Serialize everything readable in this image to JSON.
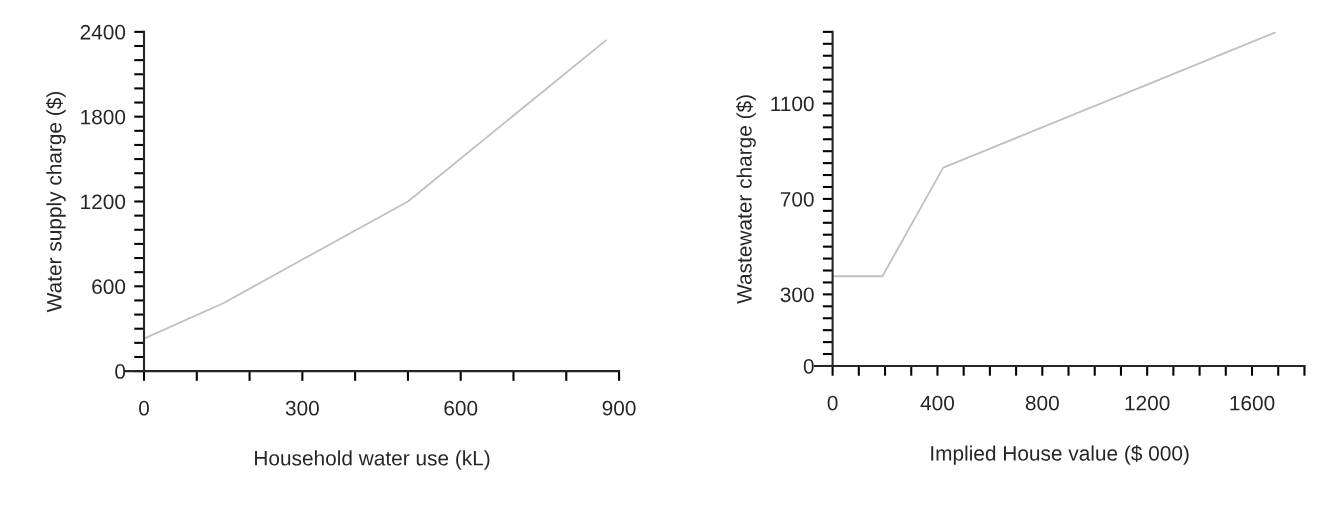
{
  "chart_data": [
    {
      "type": "line",
      "xlabel": "Household water use (kL)",
      "ylabel": "Water supply charge ($)",
      "x": [
        0,
        150,
        300,
        500,
        875
      ],
      "series": [
        {
          "color": "#c0c0c0",
          "values": [
            230,
            480,
            789,
            1200,
            2340
          ]
        }
      ],
      "xlim": [
        -36,
        900
      ],
      "ylim": [
        0,
        2400
      ],
      "grid": false,
      "legend": false,
      "marker": "none",
      "line_style": "solid",
      "xticks": [
        0,
        {
          "value": 100,
          "label": null
        },
        {
          "value": 200,
          "label": null
        },
        300,
        {
          "value": 400,
          "label": null
        },
        {
          "value": 500,
          "label": null
        },
        600,
        {
          "value": 700,
          "label": null
        },
        {
          "value": 800,
          "label": null
        },
        900
      ],
      "yticks": [
        0,
        {
          "value": 100,
          "label": null
        },
        {
          "value": 200,
          "label": null
        },
        {
          "value": 300,
          "label": null
        },
        {
          "value": 400,
          "label": null
        },
        {
          "value": 500,
          "label": null
        },
        600,
        {
          "value": 700,
          "label": null
        },
        {
          "value": 800,
          "label": null
        },
        {
          "value": 900,
          "label": null
        },
        {
          "value": 1000,
          "label": null
        },
        {
          "value": 1100,
          "label": null
        },
        1200,
        {
          "value": 1300,
          "label": null
        },
        {
          "value": 1400,
          "label": null
        },
        {
          "value": 1500,
          "label": null
        },
        {
          "value": 1600,
          "label": null
        },
        {
          "value": 1700,
          "label": null
        },
        1800,
        {
          "value": 1900,
          "label": null
        },
        {
          "value": 2000,
          "label": null
        },
        {
          "value": 2100,
          "label": null
        },
        {
          "value": 2200,
          "label": null
        },
        {
          "value": 2300,
          "label": null
        },
        2400
      ]
    },
    {
      "type": "line",
      "xlabel": "Implied House value ($ 000)",
      "ylabel": "Wastewater charge ($)",
      "x": [
        0,
        190,
        422,
        1200,
        1687
      ],
      "series": [
        {
          "color": "#c0c0c0",
          "values": [
            376,
            376,
            831,
            1179,
            1397
          ]
        }
      ],
      "xlim": [
        -68,
        1800
      ],
      "ylim": [
        0,
        1400
      ],
      "grid": false,
      "legend": false,
      "marker": "none",
      "line_style": "solid",
      "xticks": [
        0,
        {
          "value": 100,
          "label": null
        },
        {
          "value": 200,
          "label": null
        },
        {
          "value": 300,
          "label": null
        },
        400,
        {
          "value": 500,
          "label": null
        },
        {
          "value": 600,
          "label": null
        },
        {
          "value": 700,
          "label": null
        },
        800,
        {
          "value": 900,
          "label": null
        },
        {
          "value": 1000,
          "label": null
        },
        {
          "value": 1100,
          "label": null
        },
        1200,
        {
          "value": 1300,
          "label": null
        },
        {
          "value": 1400,
          "label": null
        },
        {
          "value": 1500,
          "label": null
        },
        1600,
        {
          "value": 1700,
          "label": null
        },
        {
          "value": 1800,
          "label": null
        }
      ],
      "yticks": [
        0,
        {
          "value": 50,
          "label": null
        },
        {
          "value": 100,
          "label": null
        },
        {
          "value": 150,
          "label": null
        },
        {
          "value": 200,
          "label": null
        },
        {
          "value": 250,
          "label": null
        },
        300,
        {
          "value": 350,
          "label": null
        },
        {
          "value": 400,
          "label": null
        },
        {
          "value": 450,
          "label": null
        },
        {
          "value": 500,
          "label": null
        },
        {
          "value": 550,
          "label": null
        },
        {
          "value": 600,
          "label": null
        },
        {
          "value": 650,
          "label": null
        },
        700,
        {
          "value": 750,
          "label": null
        },
        {
          "value": 800,
          "label": null
        },
        {
          "value": 850,
          "label": null
        },
        {
          "value": 900,
          "label": null
        },
        {
          "value": 950,
          "label": null
        },
        {
          "value": 1000,
          "label": null
        },
        {
          "value": 1050,
          "label": null
        },
        1100,
        {
          "value": 1150,
          "label": null
        },
        {
          "value": 1200,
          "label": null
        },
        {
          "value": 1250,
          "label": null
        },
        {
          "value": 1300,
          "label": null
        },
        {
          "value": 1350,
          "label": null
        },
        {
          "value": 1400,
          "label": null
        }
      ]
    }
  ]
}
